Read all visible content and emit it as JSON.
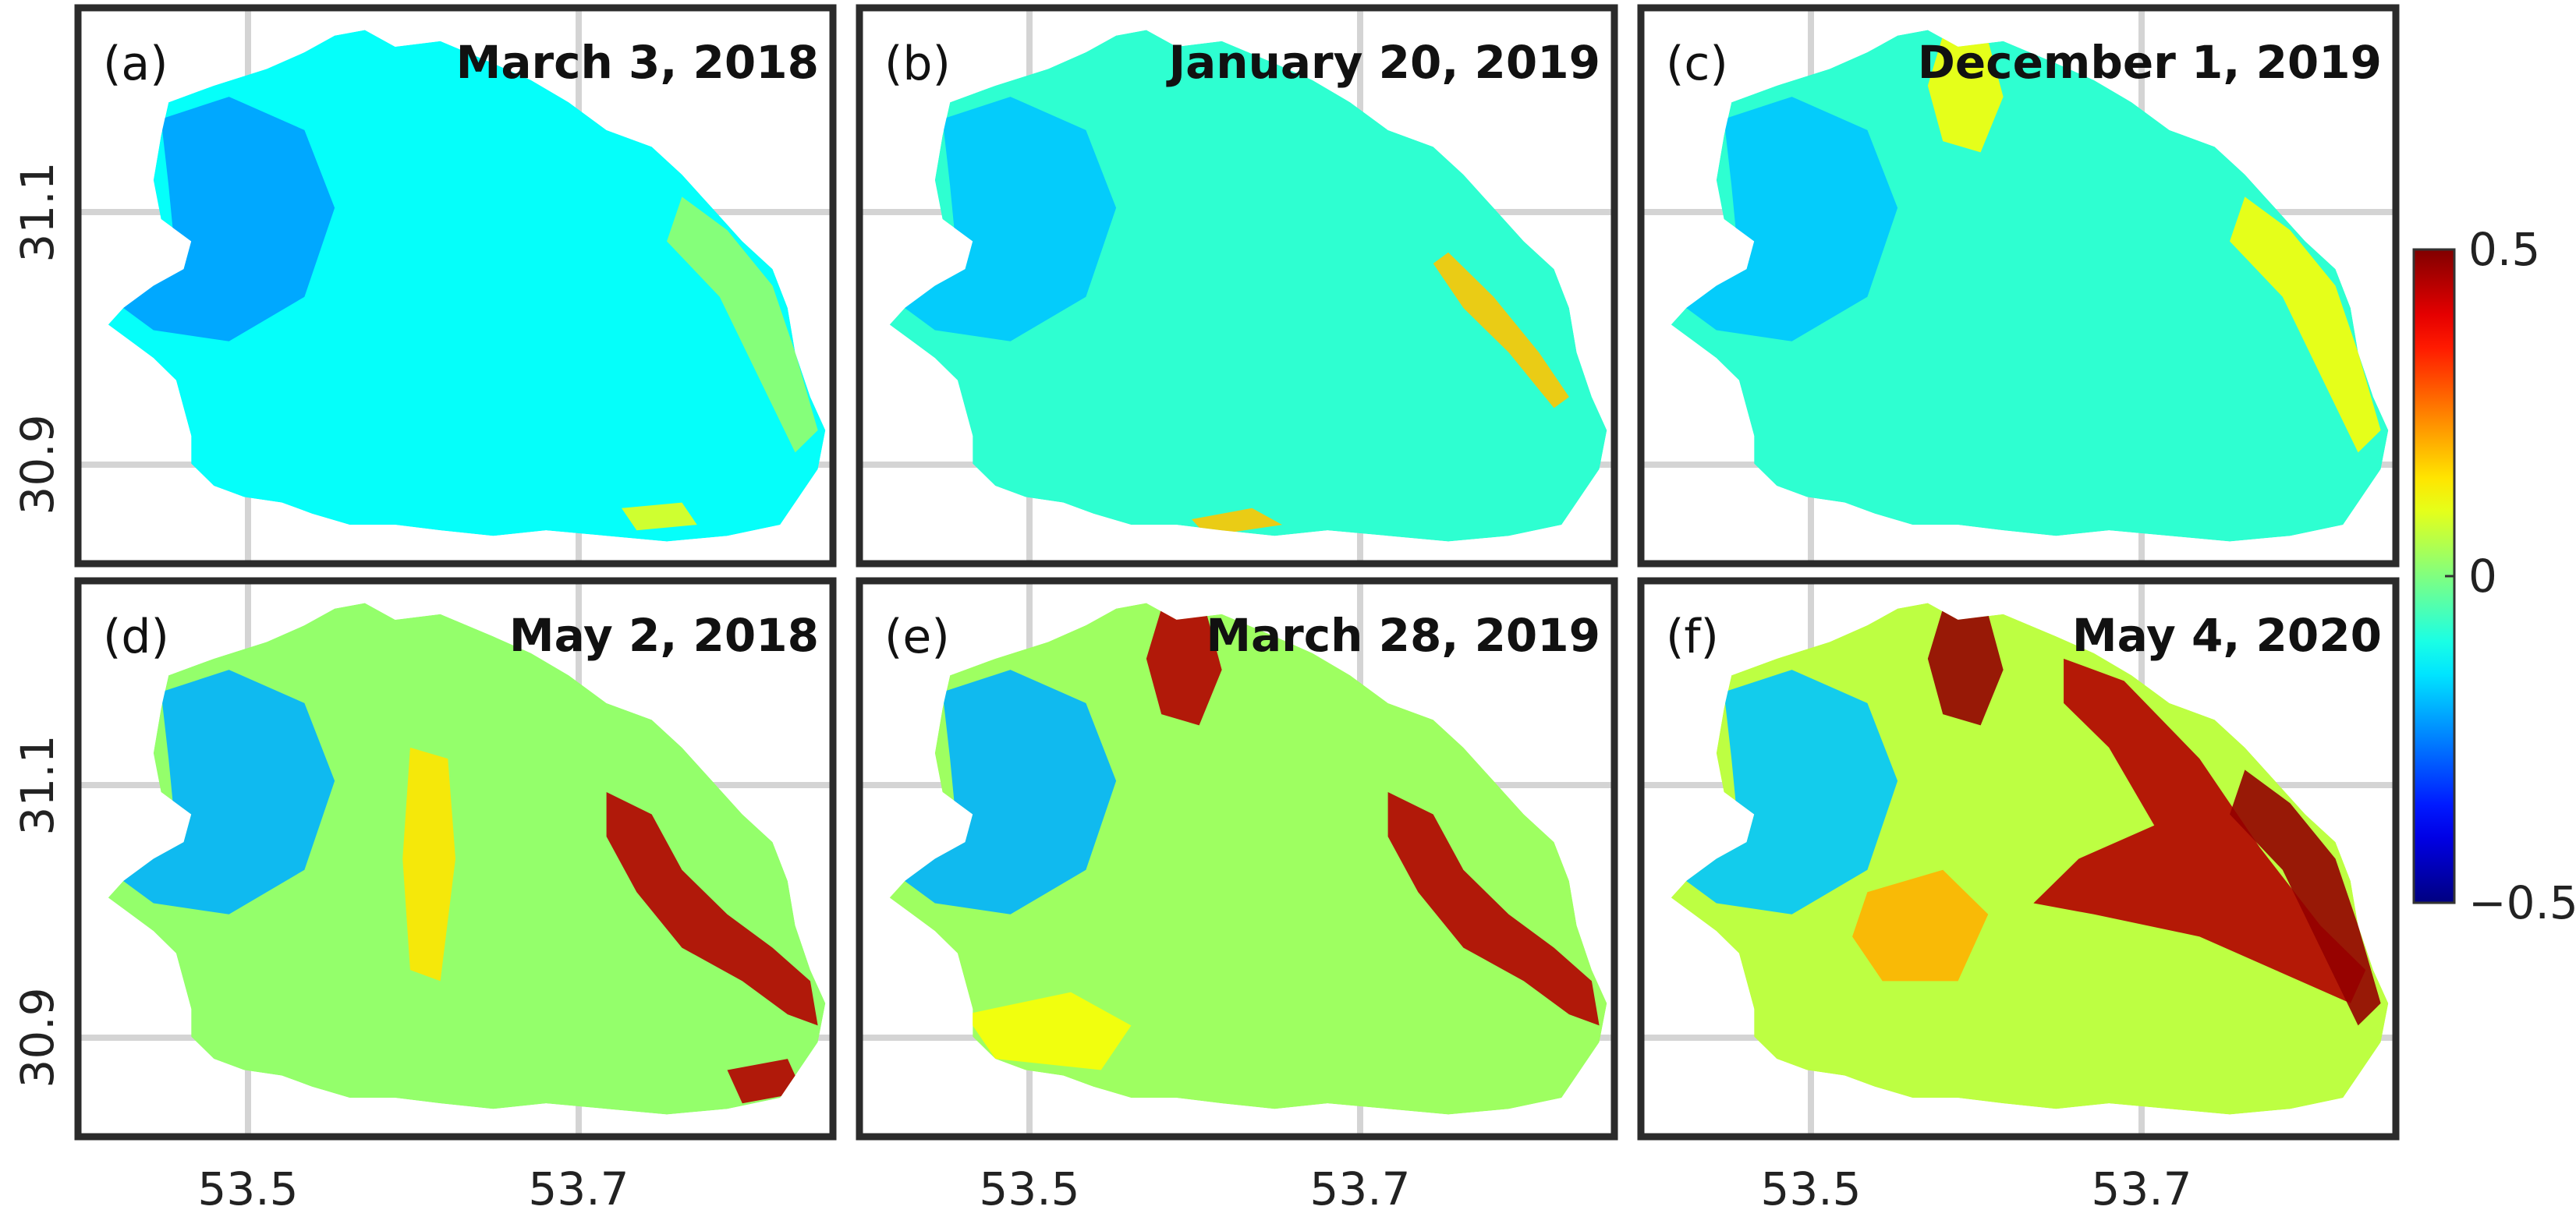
{
  "chart_data": {
    "type": "heatmap",
    "layout": "2x3 small multiples",
    "x_ticks": [
      "53.5",
      "53.7"
    ],
    "y_ticks": [
      "31.1",
      "30.9"
    ],
    "grid": true,
    "colormap": "jet",
    "colorbar": {
      "min": -0.5,
      "max": 0.5,
      "ticks": [
        {
          "value": 0.5,
          "label": "0.5"
        },
        {
          "value": 0,
          "label": "0"
        },
        {
          "value": -0.5,
          "label": "−0.5"
        }
      ],
      "placement": "right"
    },
    "panels": [
      {
        "label": "(a)",
        "date": "March 3, 2018",
        "background_value": -0.12,
        "features": [
          {
            "where": "north-west lobe",
            "value": -0.22
          },
          {
            "where": "east shoreline",
            "value": 0.02
          },
          {
            "where": "south-east edge",
            "value": 0.1
          }
        ]
      },
      {
        "label": "(b)",
        "date": "January 20, 2019",
        "background_value": -0.08,
        "features": [
          {
            "where": "north-west lobe",
            "value": -0.18
          },
          {
            "where": "east shoreline streaks",
            "value": 0.18
          },
          {
            "where": "south edge",
            "value": 0.18
          }
        ]
      },
      {
        "label": "(c)",
        "date": "December 1, 2019",
        "background_value": -0.08,
        "features": [
          {
            "where": "north-west lobe",
            "value": -0.18
          },
          {
            "where": "north tip",
            "value": 0.12
          },
          {
            "where": "east shoreline",
            "value": 0.12
          }
        ]
      },
      {
        "label": "(d)",
        "date": "May 2, 2018",
        "background_value": 0.02,
        "features": [
          {
            "where": "north-west lobe",
            "value": -0.2
          },
          {
            "where": "central ridge",
            "value": 0.15
          },
          {
            "where": "east shoreline bands",
            "value": 0.45
          },
          {
            "where": "south-east corner",
            "value": 0.45
          }
        ]
      },
      {
        "label": "(e)",
        "date": "March 28, 2019",
        "background_value": 0.03,
        "features": [
          {
            "where": "north-west lobe",
            "value": -0.2
          },
          {
            "where": "north tip",
            "value": 0.45
          },
          {
            "where": "east shoreline bands",
            "value": 0.45
          },
          {
            "where": "south-west",
            "value": 0.12
          }
        ]
      },
      {
        "label": "(f)",
        "date": "May 4, 2020",
        "background_value": 0.06,
        "features": [
          {
            "where": "north-west lobe",
            "value": -0.18
          },
          {
            "where": "north tip",
            "value": 0.48
          },
          {
            "where": "diagonal channel",
            "value": 0.45
          },
          {
            "where": "east shoreline",
            "value": 0.48
          },
          {
            "where": "central blobs",
            "value": 0.2
          }
        ]
      }
    ]
  }
}
